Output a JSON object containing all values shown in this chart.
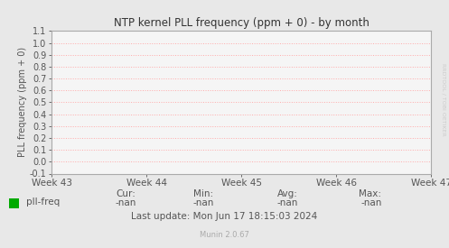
{
  "title": "NTP kernel PLL frequency (ppm + 0) - by month",
  "ylabel": "PLL frequency (ppm + 0)",
  "x_tick_labels": [
    "Week 43",
    "Week 44",
    "Week 45",
    "Week 46",
    "Week 47"
  ],
  "y_min": -0.1,
  "y_max": 1.1,
  "y_ticks": [
    -0.1,
    0.0,
    0.1,
    0.2,
    0.3,
    0.4,
    0.5,
    0.6,
    0.7,
    0.8,
    0.9,
    1.0,
    1.1
  ],
  "bg_color": "#e8e8e8",
  "plot_bg_color": "#f5f5f5",
  "grid_color": "#ffaaaa",
  "axis_color": "#aaaaaa",
  "title_color": "#333333",
  "label_color": "#555555",
  "tick_color": "#555555",
  "legend_label": "pll-freq",
  "legend_color": "#00aa00",
  "cur_val": "-nan",
  "min_val": "-nan",
  "avg_val": "-nan",
  "max_val": "-nan",
  "last_update": "Last update: Mon Jun 17 18:15:03 2024",
  "munin_version": "Munin 2.0.67",
  "rrdtool_text": "RRDTOOL / TOBI OETIKER",
  "arrow_color": "#aaccee"
}
